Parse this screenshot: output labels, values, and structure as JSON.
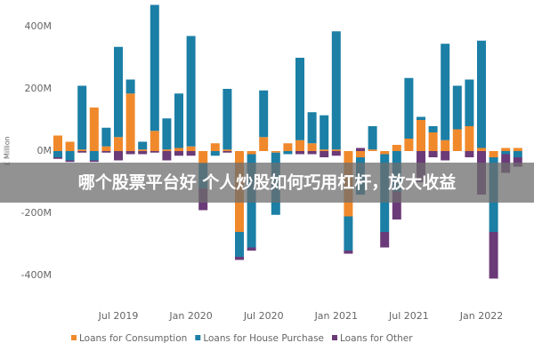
{
  "chart_data": {
    "type": "stacked-bar",
    "y_axis_label": "£ Million",
    "annotation": "哪个股票平台好 个人炒股如何巧用杠杆，放大收益",
    "categories": [
      null,
      null,
      null,
      null,
      null,
      "Jul 2019",
      null,
      null,
      null,
      null,
      null,
      "Jan 2020",
      null,
      null,
      null,
      null,
      null,
      "Jul 2020",
      null,
      null,
      null,
      null,
      null,
      "Jan 2021",
      null,
      null,
      null,
      null,
      null,
      "Jul 2021",
      null,
      null,
      null,
      null,
      null,
      "Jan 2022",
      null,
      null,
      null
    ],
    "series": [
      {
        "name": "Loans for Consumption",
        "color": "#f0892b",
        "values": [
          50,
          30,
          5,
          140,
          15,
          45,
          185,
          5,
          65,
          5,
          10,
          15,
          -40,
          25,
          5,
          -260,
          -10,
          45,
          -5,
          25,
          35,
          25,
          5,
          5,
          -210,
          -20,
          5,
          -10,
          20,
          40,
          100,
          60,
          35,
          70,
          80,
          10,
          -20,
          10,
          10
        ]
      },
      {
        "name": "Loans for House Purchase",
        "color": "#1b7fa6",
        "values": [
          -20,
          -30,
          205,
          -30,
          60,
          290,
          45,
          25,
          405,
          100,
          175,
          355,
          -80,
          -15,
          195,
          -80,
          -300,
          150,
          -200,
          -10,
          265,
          100,
          110,
          380,
          -110,
          -120,
          75,
          -250,
          -130,
          195,
          10,
          20,
          310,
          140,
          150,
          345,
          -240,
          -10,
          -20
        ]
      },
      {
        "name": "Loans for Other",
        "color": "#6b3a78",
        "values": [
          -5,
          -5,
          -5,
          -5,
          -5,
          -30,
          -10,
          -10,
          -5,
          -30,
          -15,
          -15,
          -70,
          0,
          -5,
          -10,
          -10,
          0,
          0,
          0,
          -10,
          -10,
          -20,
          -15,
          -10,
          10,
          0,
          -50,
          -90,
          0,
          -100,
          -20,
          -30,
          0,
          -20,
          -140,
          -150,
          -60,
          -30
        ]
      }
    ],
    "ylim": [
      -480,
      480
    ],
    "yticks": [
      {
        "value": -400,
        "label": "-400M"
      },
      {
        "value": -200,
        "label": "-200M"
      },
      {
        "value": 0,
        "label": "0M"
      },
      {
        "value": 200,
        "label": "200M"
      },
      {
        "value": 400,
        "label": "400M"
      }
    ],
    "grid": false
  }
}
